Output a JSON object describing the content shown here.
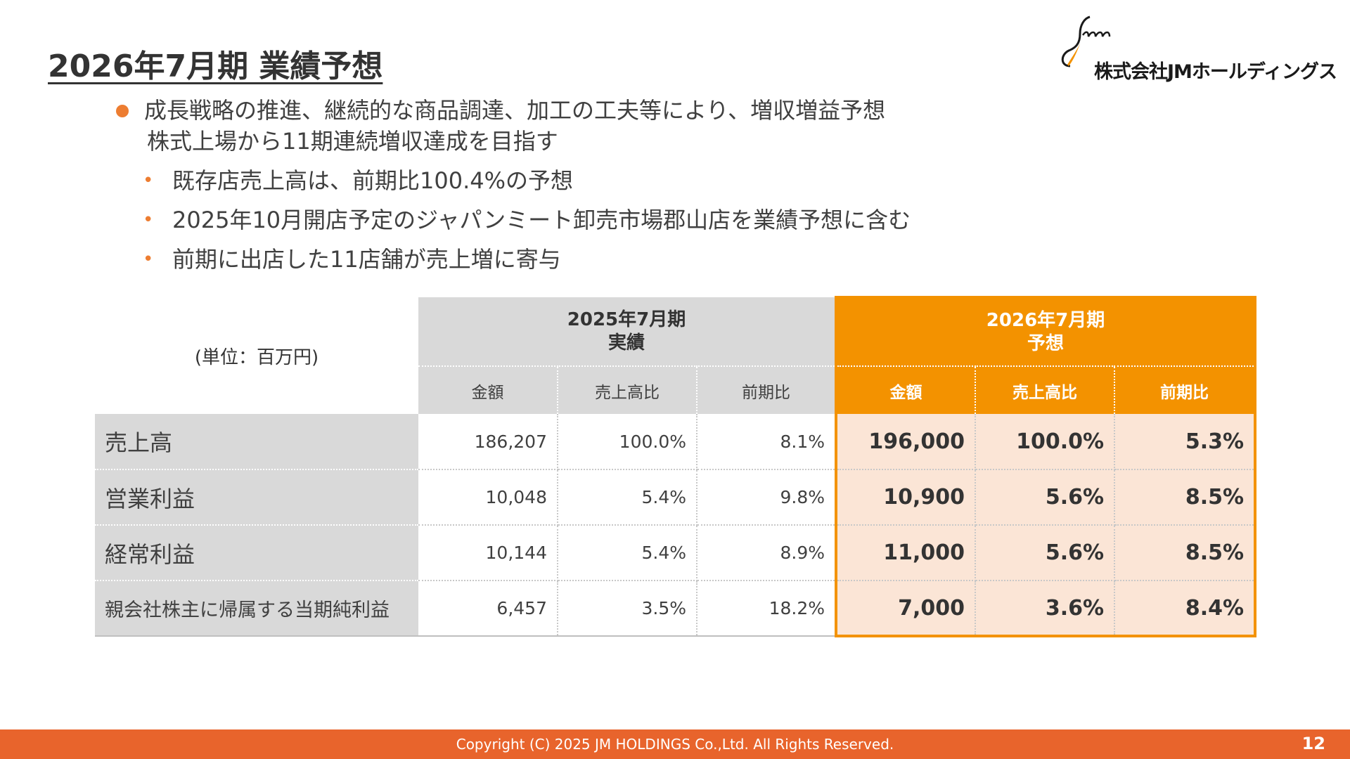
{
  "slide": {
    "title": "2026年7月期 業績予想",
    "company_name": "株式会社JMホールディングス",
    "logo_icon": "jm-logo-icon"
  },
  "bullets": {
    "main": {
      "line1": "成長戦略の推進、継続的な商品調達、加工の工夫等により、増収増益予想",
      "line2": "株式上場から11期連続増収達成を目指す"
    },
    "sub": [
      "既存店売上高は、前期比100.4%の予想",
      "2025年10月開店予定のジャパンミート卸売市場郡山店を業績予想に含む",
      "前期に出店した11店舗が売上増に寄与"
    ],
    "sub_marker": "•"
  },
  "table": {
    "unit_label": "(単位：百万円)",
    "actual_header": {
      "line1": "2025年7月期",
      "line2": "実績"
    },
    "forecast_header": {
      "line1": "2026年7月期",
      "line2": "予想"
    },
    "subheaders": [
      "金額",
      "売上高比",
      "前期比"
    ],
    "rows": [
      {
        "label": "売上高",
        "actual": [
          "186,207",
          "100.0%",
          "8.1%"
        ],
        "forecast": [
          "196,000",
          "100.0%",
          "5.3%"
        ]
      },
      {
        "label": "営業利益",
        "actual": [
          "10,048",
          "5.4%",
          "9.8%"
        ],
        "forecast": [
          "10,900",
          "5.6%",
          "8.5%"
        ]
      },
      {
        "label": "経常利益",
        "actual": [
          "10,144",
          "5.4%",
          "8.9%"
        ],
        "forecast": [
          "11,000",
          "5.6%",
          "8.5%"
        ]
      },
      {
        "label": "親会社株主に帰属する当期純利益",
        "actual": [
          "6,457",
          "3.5%",
          "18.2%"
        ],
        "forecast": [
          "7,000",
          "3.6%",
          "8.4%"
        ]
      }
    ]
  },
  "footer": {
    "copyright": "Copyright (C) 2025 JM HOLDINGS Co.,Ltd. All Rights Reserved.",
    "page_number": "12"
  },
  "colors": {
    "accent_orange": "#F39200",
    "bullet_orange": "#ED7D31",
    "footer_orange": "#E8642C",
    "forecast_cell_bg": "#FBE5D6",
    "header_gray": "#D9D9D9"
  }
}
